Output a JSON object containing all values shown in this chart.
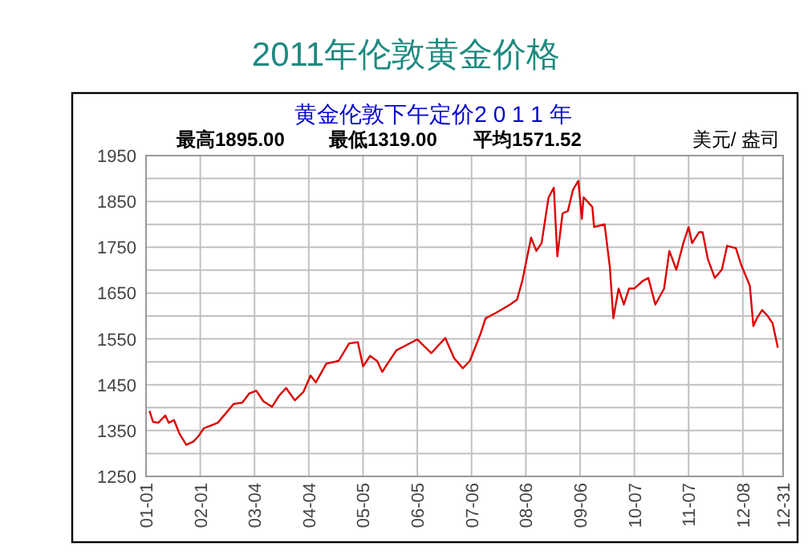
{
  "chart_data": {
    "type": "line",
    "title": "2011年伦敦黄金价格",
    "subtitle": "黄金伦敦下午定价2 0 1 1 年",
    "ylabel": "美元/ 盎司",
    "annotations": [
      "最高1895.00",
      "最低1319.00",
      "平均1571.52"
    ],
    "x": [
      "2011-01-03",
      "2011-01-05",
      "2011-01-08",
      "2011-01-12",
      "2011-01-14",
      "2011-01-17",
      "2011-01-20",
      "2011-01-24",
      "2011-01-28",
      "2011-01-31",
      "2011-02-03",
      "2011-02-07",
      "2011-02-11",
      "2011-02-15",
      "2011-02-20",
      "2011-02-25",
      "2011-03-01",
      "2011-03-05",
      "2011-03-09",
      "2011-03-14",
      "2011-03-18",
      "2011-03-22",
      "2011-03-27",
      "2011-04-01",
      "2011-04-05",
      "2011-04-08",
      "2011-04-14",
      "2011-04-21",
      "2011-04-27",
      "2011-05-02",
      "2011-05-05",
      "2011-05-09",
      "2011-05-13",
      "2011-05-16",
      "2011-05-19",
      "2011-05-24",
      "2011-05-30",
      "2011-06-05",
      "2011-06-13",
      "2011-06-21",
      "2011-06-26",
      "2011-07-01",
      "2011-07-05",
      "2011-07-11",
      "2011-07-14",
      "2011-07-20",
      "2011-07-28",
      "2011-08-01",
      "2011-08-04",
      "2011-08-09",
      "2011-08-12",
      "2011-08-15",
      "2011-08-19",
      "2011-08-22",
      "2011-08-24",
      "2011-08-27",
      "2011-08-30",
      "2011-09-02",
      "2011-09-05",
      "2011-09-07",
      "2011-09-08",
      "2011-09-13",
      "2011-09-14",
      "2011-09-20",
      "2011-09-23",
      "2011-09-25",
      "2011-09-28",
      "2011-10-01",
      "2011-10-04",
      "2011-10-07",
      "2011-10-12",
      "2011-10-15",
      "2011-10-19",
      "2011-10-24",
      "2011-10-27",
      "2011-10-31",
      "2011-11-04",
      "2011-11-07",
      "2011-11-09",
      "2011-11-13",
      "2011-11-15",
      "2011-11-18",
      "2011-11-22",
      "2011-11-26",
      "2011-11-29",
      "2011-12-04",
      "2011-12-07",
      "2011-12-12",
      "2011-12-14",
      "2011-12-16",
      "2011-12-19",
      "2011-12-22",
      "2011-12-25",
      "2011-12-28"
    ],
    "series": [
      {
        "color": "#dd0000",
        "values": [
          1393,
          1369,
          1367,
          1383,
          1367,
          1373,
          1344,
          1319,
          1326,
          1338,
          1355,
          1361,
          1367,
          1385,
          1408,
          1411,
          1431,
          1437,
          1414,
          1402,
          1426,
          1443,
          1416,
          1435,
          1470,
          1455,
          1496,
          1502,
          1540,
          1543,
          1490,
          1513,
          1502,
          1478,
          1496,
          1525,
          1537,
          1549,
          1519,
          1552,
          1508,
          1486,
          1502,
          1560,
          1595,
          1607,
          1625,
          1636,
          1677,
          1771,
          1742,
          1759,
          1859,
          1880,
          1730,
          1824,
          1829,
          1876,
          1895,
          1812,
          1859,
          1838,
          1794,
          1800,
          1707,
          1595,
          1660,
          1625,
          1660,
          1660,
          1677,
          1683,
          1625,
          1660,
          1742,
          1701,
          1759,
          1794,
          1759,
          1783,
          1783,
          1724,
          1683,
          1701,
          1753,
          1748,
          1712,
          1666,
          1578,
          1595,
          1613,
          1601,
          1584,
          1531
        ]
      }
    ],
    "xlim": [
      "2011-01-01",
      "2011-12-31"
    ],
    "xticks": [
      {
        "value": "2011-01-01",
        "label": "01-01"
      },
      {
        "value": "2011-02-01",
        "label": "02-01"
      },
      {
        "value": "2011-03-04",
        "label": "03-04"
      },
      {
        "value": "2011-04-04",
        "label": "04-04"
      },
      {
        "value": "2011-05-05",
        "label": "05-05"
      },
      {
        "value": "2011-06-05",
        "label": "06-05"
      },
      {
        "value": "2011-07-06",
        "label": "07-06"
      },
      {
        "value": "2011-08-06",
        "label": "08-06"
      },
      {
        "value": "2011-09-06",
        "label": "09-06"
      },
      {
        "value": "2011-10-07",
        "label": "10-07"
      },
      {
        "value": "2011-11-07",
        "label": "11-07"
      },
      {
        "value": "2011-12-08",
        "label": "12-08"
      },
      {
        "value": "2011-12-31",
        "label": "12-31"
      }
    ],
    "ylim": [
      1250,
      1950
    ],
    "yticks": [
      1250,
      {
        "value": 1300,
        "label": null
      },
      1350,
      {
        "value": 1400,
        "label": null
      },
      1450,
      {
        "value": 1500,
        "label": null
      },
      1550,
      {
        "value": 1600,
        "label": null
      },
      1650,
      {
        "value": 1700,
        "label": null
      },
      1750,
      {
        "value": 1800,
        "label": null
      },
      1850,
      {
        "value": 1900,
        "label": null
      },
      1950
    ],
    "grid": true,
    "marker": "none",
    "line_style": "solid"
  }
}
